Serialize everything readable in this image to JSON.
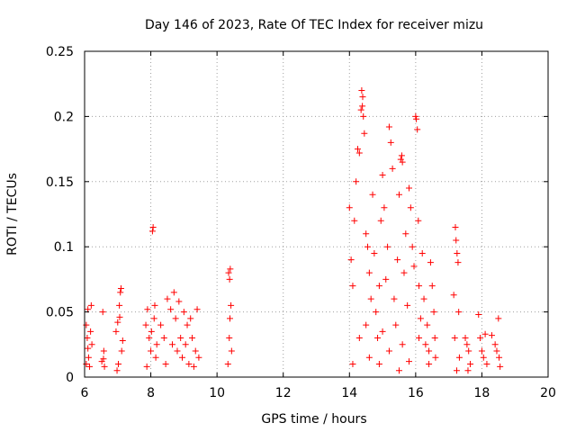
{
  "chart_data": {
    "type": "scatter",
    "title": "Day 146 of 2023, Rate Of TEC Index for receiver mizu",
    "xlabel": "GPS time / hours",
    "ylabel": "ROTI / TECUs",
    "xlim": [
      6,
      20
    ],
    "ylim": [
      0,
      0.25
    ],
    "xticks": [
      6,
      8,
      10,
      12,
      14,
      16,
      18,
      20
    ],
    "xtick_labels": [
      "6",
      "8",
      "10",
      "12",
      "14",
      "16",
      "18",
      "20"
    ],
    "yticks": [
      0,
      0.05,
      0.1,
      0.15,
      0.2,
      0.25
    ],
    "ytick_labels": [
      "0",
      "0.05",
      "0.1",
      "0.15",
      "0.2",
      "0.25"
    ],
    "grid": true,
    "marker": "+",
    "color": "#ff0000",
    "series": [
      {
        "points": [
          [
            6.05,
            0.04
          ],
          [
            6.08,
            0.03
          ],
          [
            6.1,
            0.022
          ],
          [
            6.12,
            0.015
          ],
          [
            6.15,
            0.008
          ],
          [
            6.18,
            0.035
          ],
          [
            6.1,
            0.052
          ],
          [
            6.2,
            0.055
          ],
          [
            6.05,
            0.01
          ],
          [
            6.22,
            0.025
          ],
          [
            6.55,
            0.05
          ],
          [
            6.57,
            0.014
          ],
          [
            6.6,
            0.008
          ],
          [
            6.58,
            0.02
          ],
          [
            6.52,
            0.012
          ],
          [
            6.95,
            0.035
          ],
          [
            7.0,
            0.042
          ],
          [
            7.05,
            0.055
          ],
          [
            7.08,
            0.065
          ],
          [
            7.1,
            0.068
          ],
          [
            7.12,
            0.02
          ],
          [
            7.02,
            0.01
          ],
          [
            7.15,
            0.028
          ],
          [
            6.98,
            0.005
          ],
          [
            7.06,
            0.046
          ],
          [
            7.85,
            0.04
          ],
          [
            7.9,
            0.052
          ],
          [
            7.95,
            0.03
          ],
          [
            8.0,
            0.02
          ],
          [
            8.05,
            0.112
          ],
          [
            8.07,
            0.115
          ],
          [
            8.1,
            0.045
          ],
          [
            8.12,
            0.055
          ],
          [
            8.15,
            0.015
          ],
          [
            7.88,
            0.008
          ],
          [
            8.02,
            0.035
          ],
          [
            8.18,
            0.025
          ],
          [
            8.3,
            0.04
          ],
          [
            8.4,
            0.03
          ],
          [
            8.5,
            0.06
          ],
          [
            8.6,
            0.052
          ],
          [
            8.7,
            0.065
          ],
          [
            8.75,
            0.045
          ],
          [
            8.8,
            0.02
          ],
          [
            8.85,
            0.058
          ],
          [
            8.9,
            0.03
          ],
          [
            8.95,
            0.015
          ],
          [
            9.0,
            0.05
          ],
          [
            9.05,
            0.025
          ],
          [
            9.1,
            0.04
          ],
          [
            9.15,
            0.01
          ],
          [
            9.2,
            0.045
          ],
          [
            9.25,
            0.03
          ],
          [
            9.3,
            0.008
          ],
          [
            9.35,
            0.02
          ],
          [
            9.4,
            0.052
          ],
          [
            9.45,
            0.015
          ],
          [
            8.45,
            0.01
          ],
          [
            8.65,
            0.025
          ],
          [
            10.35,
            0.08
          ],
          [
            10.38,
            0.075
          ],
          [
            10.4,
            0.083
          ],
          [
            10.42,
            0.055
          ],
          [
            10.37,
            0.03
          ],
          [
            10.44,
            0.02
          ],
          [
            10.33,
            0.01
          ],
          [
            10.39,
            0.045
          ],
          [
            14.0,
            0.13
          ],
          [
            14.05,
            0.09
          ],
          [
            14.1,
            0.07
          ],
          [
            14.15,
            0.12
          ],
          [
            14.2,
            0.15
          ],
          [
            14.25,
            0.175
          ],
          [
            14.3,
            0.172
          ],
          [
            14.35,
            0.205
          ],
          [
            14.37,
            0.22
          ],
          [
            14.39,
            0.208
          ],
          [
            14.4,
            0.215
          ],
          [
            14.42,
            0.2
          ],
          [
            14.45,
            0.187
          ],
          [
            14.5,
            0.11
          ],
          [
            14.55,
            0.1
          ],
          [
            14.6,
            0.08
          ],
          [
            14.65,
            0.06
          ],
          [
            14.7,
            0.14
          ],
          [
            14.75,
            0.095
          ],
          [
            14.8,
            0.05
          ],
          [
            14.85,
            0.03
          ],
          [
            14.9,
            0.07
          ],
          [
            14.95,
            0.12
          ],
          [
            15.0,
            0.155
          ],
          [
            15.05,
            0.13
          ],
          [
            15.1,
            0.075
          ],
          [
            15.15,
            0.1
          ],
          [
            15.2,
            0.192
          ],
          [
            15.25,
            0.18
          ],
          [
            15.3,
            0.16
          ],
          [
            15.35,
            0.06
          ],
          [
            15.4,
            0.04
          ],
          [
            15.45,
            0.09
          ],
          [
            15.5,
            0.14
          ],
          [
            15.55,
            0.167
          ],
          [
            15.58,
            0.17
          ],
          [
            15.6,
            0.165
          ],
          [
            15.65,
            0.08
          ],
          [
            15.7,
            0.11
          ],
          [
            15.75,
            0.055
          ],
          [
            15.8,
            0.145
          ],
          [
            15.85,
            0.13
          ],
          [
            15.9,
            0.1
          ],
          [
            15.95,
            0.085
          ],
          [
            16.0,
            0.2
          ],
          [
            16.02,
            0.198
          ],
          [
            16.05,
            0.19
          ],
          [
            16.08,
            0.12
          ],
          [
            16.1,
            0.07
          ],
          [
            16.15,
            0.045
          ],
          [
            16.2,
            0.095
          ],
          [
            16.25,
            0.06
          ],
          [
            16.3,
            0.025
          ],
          [
            16.35,
            0.04
          ],
          [
            16.4,
            0.02
          ],
          [
            14.1,
            0.01
          ],
          [
            14.3,
            0.03
          ],
          [
            14.6,
            0.015
          ],
          [
            14.9,
            0.01
          ],
          [
            15.2,
            0.02
          ],
          [
            15.5,
            0.005
          ],
          [
            15.8,
            0.012
          ],
          [
            16.1,
            0.03
          ],
          [
            16.4,
            0.01
          ],
          [
            14.5,
            0.04
          ],
          [
            15.0,
            0.035
          ],
          [
            15.6,
            0.025
          ],
          [
            16.45,
            0.088
          ],
          [
            16.5,
            0.07
          ],
          [
            16.55,
            0.05
          ],
          [
            16.58,
            0.03
          ],
          [
            16.6,
            0.015
          ],
          [
            17.15,
            0.063
          ],
          [
            17.2,
            0.115
          ],
          [
            17.22,
            0.105
          ],
          [
            17.25,
            0.095
          ],
          [
            17.28,
            0.088
          ],
          [
            17.3,
            0.05
          ],
          [
            17.18,
            0.03
          ],
          [
            17.32,
            0.015
          ],
          [
            17.24,
            0.005
          ],
          [
            17.5,
            0.03
          ],
          [
            17.55,
            0.025
          ],
          [
            17.6,
            0.02
          ],
          [
            17.65,
            0.01
          ],
          [
            17.58,
            0.005
          ],
          [
            17.9,
            0.048
          ],
          [
            17.95,
            0.03
          ],
          [
            18.0,
            0.02
          ],
          [
            18.05,
            0.015
          ],
          [
            18.1,
            0.033
          ],
          [
            18.15,
            0.01
          ],
          [
            18.3,
            0.032
          ],
          [
            18.4,
            0.025
          ],
          [
            18.45,
            0.02
          ],
          [
            18.5,
            0.045
          ],
          [
            18.52,
            0.015
          ],
          [
            18.55,
            0.008
          ]
        ]
      }
    ]
  }
}
